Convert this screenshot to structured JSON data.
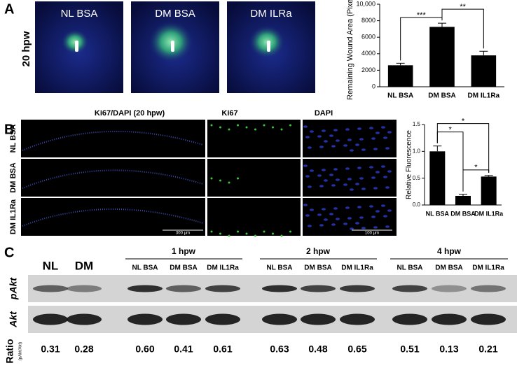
{
  "panel_labels": [
    "A",
    "B",
    "C"
  ],
  "panel_a": {
    "row_label": "20 hpw",
    "images": [
      "NL BSA",
      "DM BSA",
      "DM ILRa"
    ]
  },
  "chart_data": [
    {
      "type": "bar",
      "ylabel": "Remaining Wound Area (Pixels)",
      "categories": [
        "NL BSA",
        "DM BSA",
        "DM IL1Ra"
      ],
      "values": [
        2600,
        7250,
        3800
      ],
      "errors": [
        250,
        450,
        500
      ],
      "color": "#000000",
      "ylim": [
        0,
        10000
      ],
      "yticks": [
        0,
        2000,
        4000,
        6000,
        8000,
        {
          "value": 10000,
          "label": "10,000"
        }
      ],
      "annotations": [
        {
          "label": "***",
          "pair": [
            "NL BSA",
            "DM BSA"
          ]
        },
        {
          "label": "**",
          "pair": [
            "DM BSA",
            "DM IL1Ra"
          ]
        }
      ]
    },
    {
      "type": "bar",
      "ylabel": "Relative Fluorescence",
      "categories": [
        "NL BSA",
        "DM BSA",
        "DM IL1Ra"
      ],
      "values": [
        1.0,
        0.17,
        0.53
      ],
      "errors": [
        0.1,
        0.03,
        0.02
      ],
      "color": "#000000",
      "ylim": [
        0,
        1.5
      ],
      "yticks": [
        {
          "value": 0,
          "label": "0.0"
        },
        0.5,
        {
          "value": 1,
          "label": "1.0"
        },
        1.5
      ],
      "annotations": [
        {
          "label": "*",
          "pair": [
            "DM BSA",
            "DM IL1Ra"
          ]
        },
        {
          "label": "*",
          "pair": [
            "NL BSA",
            "DM BSA"
          ]
        },
        {
          "label": "*",
          "pair": [
            "NL BSA",
            "DM IL1Ra"
          ]
        }
      ]
    }
  ],
  "panel_b": {
    "headers": [
      "Ki67/DAPI  (20 hpw)",
      "Ki67",
      "DAPI"
    ],
    "rows": [
      "NL BSA",
      "DM BSA",
      "DM IL1Ra"
    ],
    "scale_bars": [
      "300 µm",
      "100 µm"
    ]
  },
  "panel_c": {
    "lanes": [
      "NL",
      "DM"
    ],
    "groups": [
      {
        "name": "1 hpw",
        "lanes": [
          "NL BSA",
          "DM BSA",
          "DM IL1Ra"
        ]
      },
      {
        "name": "2 hpw",
        "lanes": [
          "NL BSA",
          "DM BSA",
          "DM IL1Ra"
        ]
      },
      {
        "name": "4 hpw",
        "lanes": [
          "NL BSA",
          "DM BSA",
          "DM IL1Ra"
        ]
      }
    ],
    "rows": [
      "pAkt",
      "Akt"
    ],
    "ratio_label": "Ratio",
    "ratio_sublabel": "(pAkt/Akt)",
    "ratios": [
      "0.31",
      "0.28",
      "0.60",
      "0.41",
      "0.61",
      "0.63",
      "0.48",
      "0.65",
      "0.51",
      "0.13",
      "0.21"
    ]
  }
}
